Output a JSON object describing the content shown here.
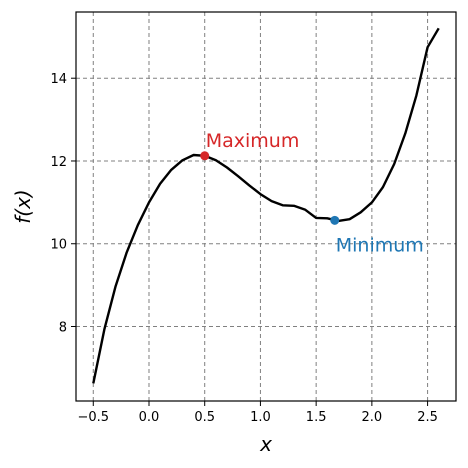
{
  "chart_data": {
    "type": "line",
    "title": "",
    "xlabel": "x",
    "ylabel": "f(x)",
    "xlim": [
      -0.655,
      2.755
    ],
    "ylim": [
      6.2,
      15.6
    ],
    "xticks": [
      -0.5,
      0.0,
      0.5,
      1.0,
      1.5,
      2.0,
      2.5
    ],
    "xtick_labels": [
      "−0.5",
      "0.0",
      "0.5",
      "1.0",
      "1.5",
      "2.0",
      "2.5"
    ],
    "yticks": [
      8,
      10,
      12,
      14
    ],
    "ytick_labels": [
      "8",
      "10",
      "12",
      "14"
    ],
    "grid": true,
    "grid_style": "dashed",
    "series": [
      {
        "color": "#000000",
        "x": [
          -0.5,
          -0.4,
          -0.3,
          -0.2,
          -0.1,
          0.0,
          0.1,
          0.2,
          0.3,
          0.4,
          0.5,
          0.6,
          0.7,
          0.8,
          0.9,
          1.0,
          1.1,
          1.2,
          1.3,
          1.4,
          1.5,
          1.6,
          1.7,
          1.8,
          1.9,
          2.0,
          2.1,
          2.2,
          2.3,
          2.4,
          2.5,
          2.6
        ],
        "y": [
          6.625,
          7.936,
          8.973,
          9.792,
          10.449,
          11.0,
          11.451,
          11.788,
          12.017,
          12.144,
          12.125,
          12.016,
          11.843,
          11.632,
          11.409,
          11.2,
          11.031,
          10.928,
          10.917,
          10.824,
          10.625,
          10.616,
          10.553,
          10.592,
          10.759,
          11.0,
          11.371,
          11.928,
          12.667,
          13.584,
          14.75,
          15.206
        ]
      }
    ],
    "points": [
      {
        "label": "Maximum",
        "x": 0.5,
        "y": 12.125,
        "color": "#d62728"
      },
      {
        "label": "Minimum",
        "x": 1.667,
        "y": 10.565,
        "color": "#1f77b4"
      }
    ]
  }
}
